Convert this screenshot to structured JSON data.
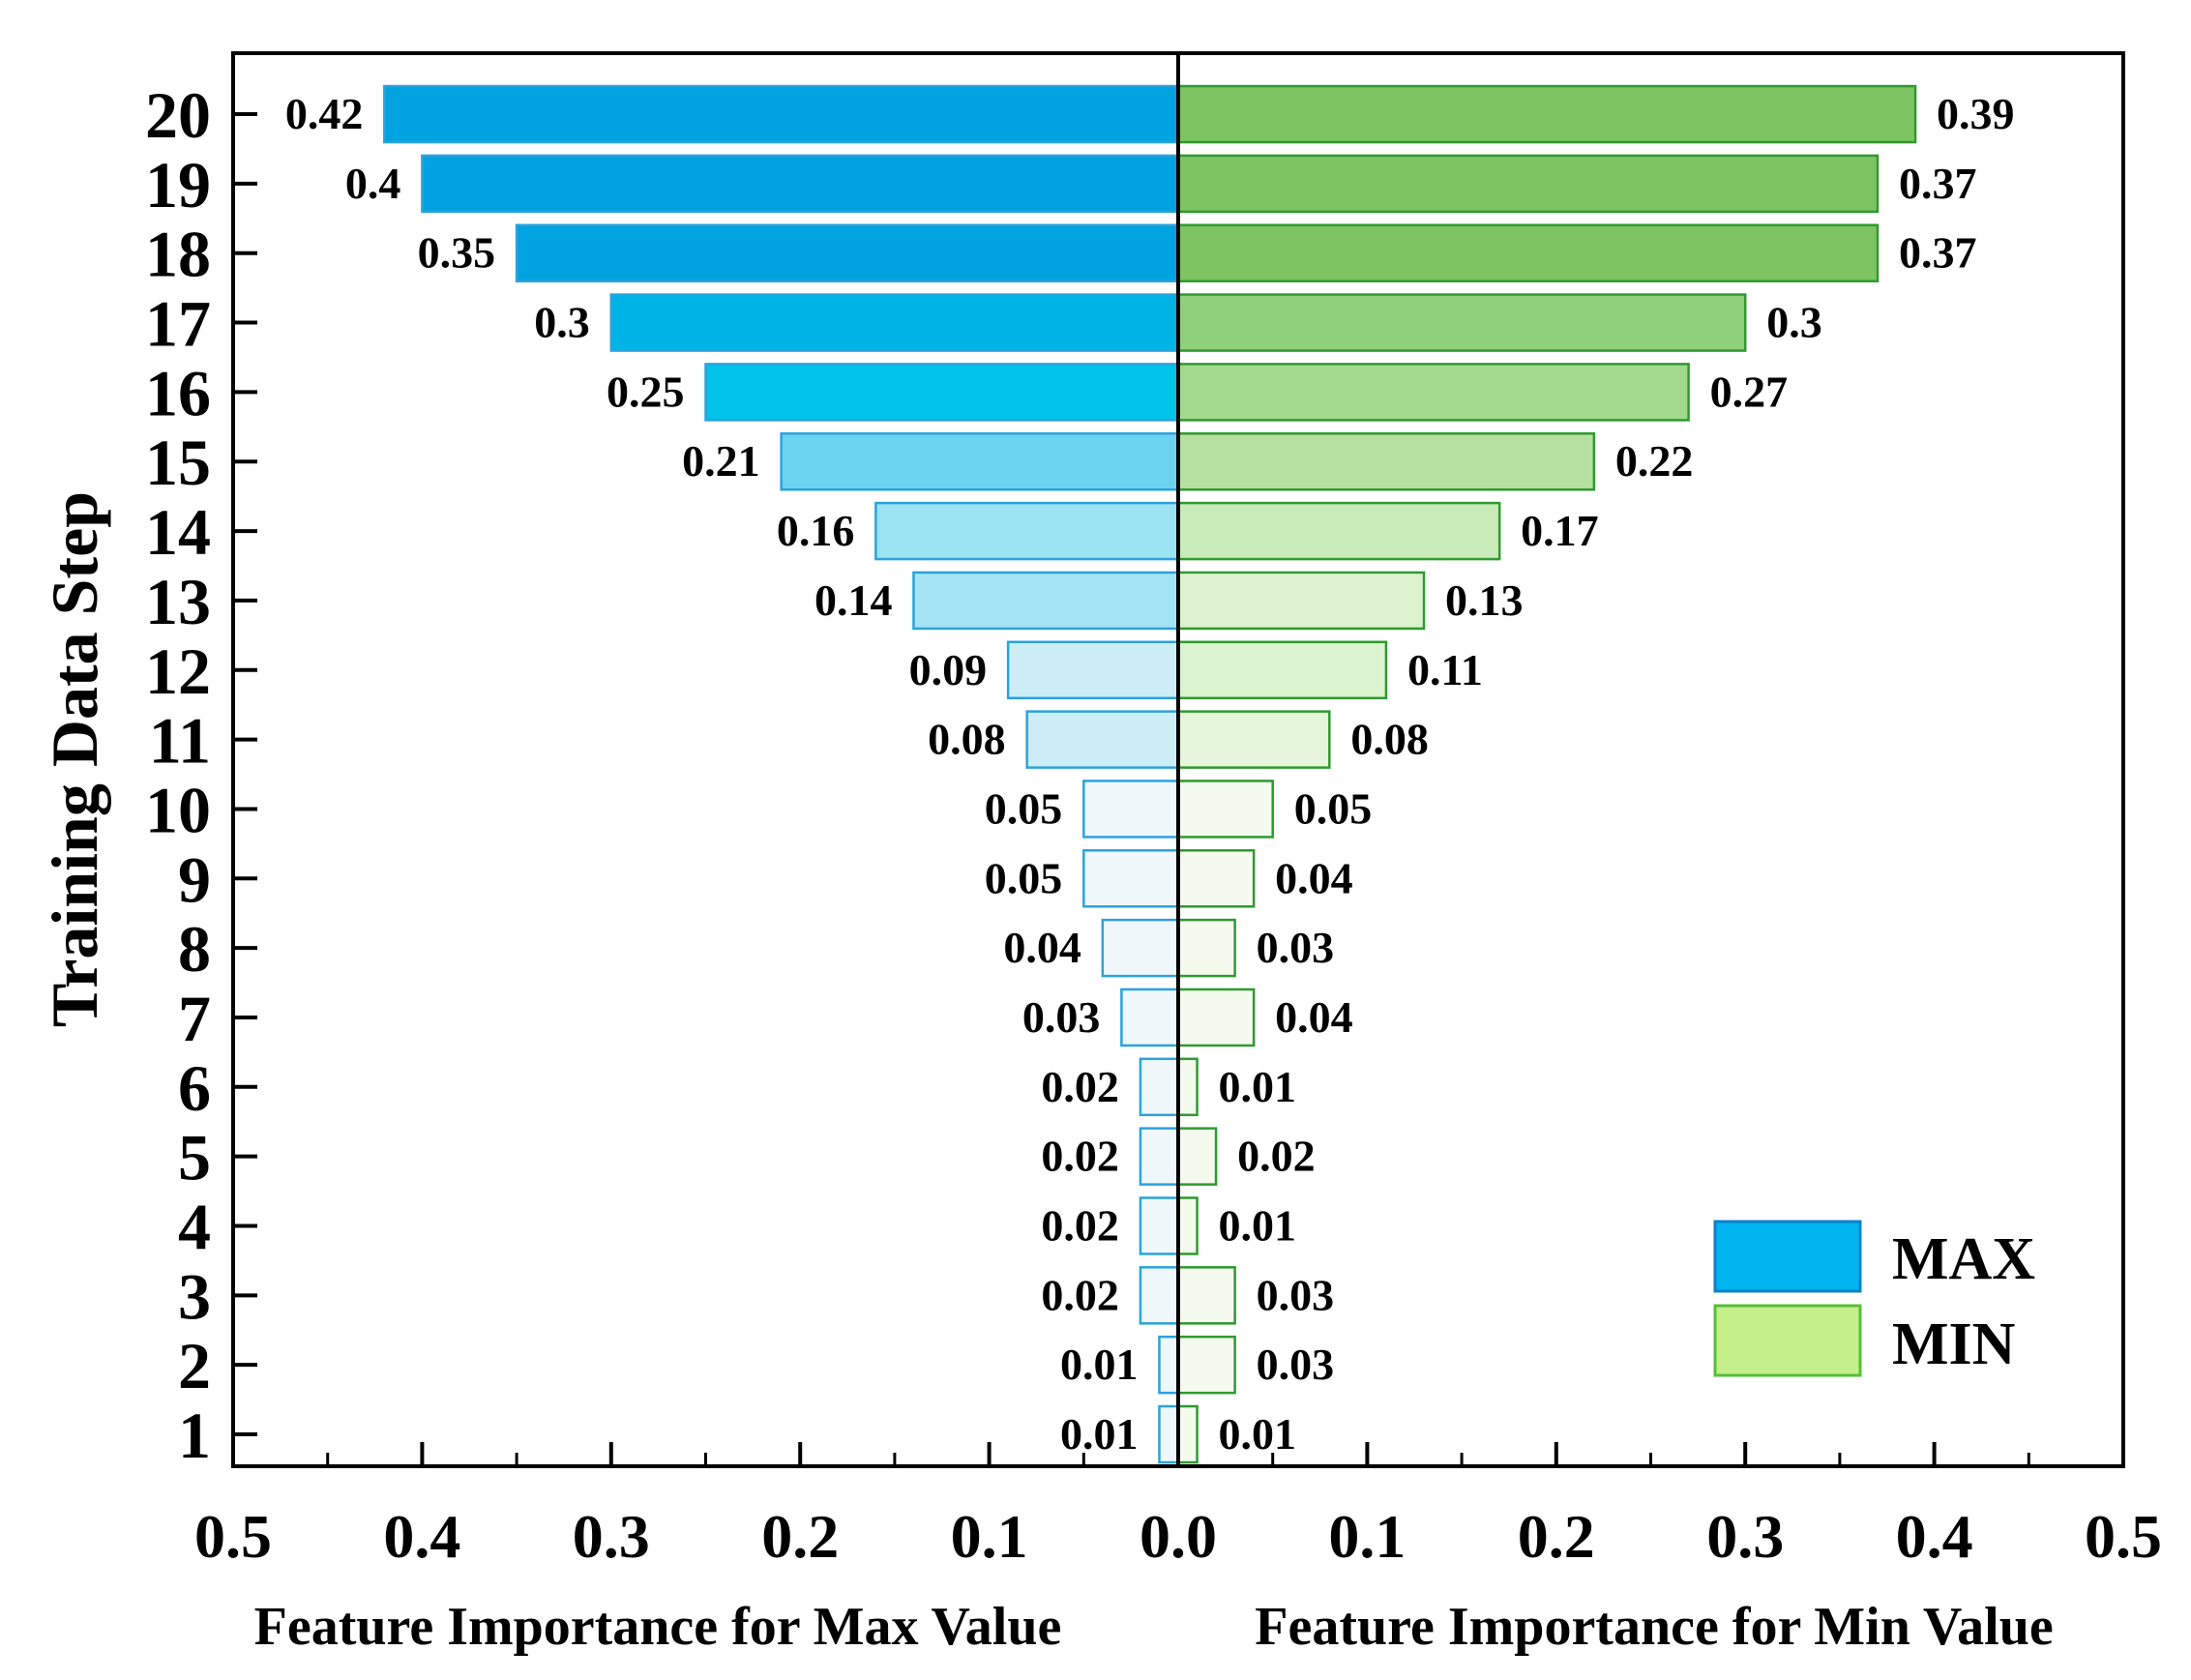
{
  "chart_data": {
    "type": "bar",
    "orientation": "horizontal-diverging",
    "ylabel": "Training Data Step",
    "xlabel_left": "Feature Importance for Max Value",
    "xlabel_right": "Feature Importance for Min Value",
    "xlim": [
      0,
      0.5
    ],
    "x_ticks": [
      "0.5",
      "0.4",
      "0.3",
      "0.2",
      "0.1",
      "0.0",
      "0.1",
      "0.2",
      "0.3",
      "0.4",
      "0.5"
    ],
    "categories": [
      "1",
      "2",
      "3",
      "4",
      "5",
      "6",
      "7",
      "8",
      "9",
      "10",
      "11",
      "12",
      "13",
      "14",
      "15",
      "16",
      "17",
      "18",
      "19",
      "20"
    ],
    "series": [
      {
        "name": "MAX",
        "side": "left",
        "values": [
          0.01,
          0.01,
          0.02,
          0.02,
          0.02,
          0.02,
          0.03,
          0.04,
          0.05,
          0.05,
          0.08,
          0.09,
          0.14,
          0.16,
          0.21,
          0.25,
          0.3,
          0.35,
          0.4,
          0.42
        ],
        "labels": [
          "0.01",
          "0.01",
          "0.02",
          "0.02",
          "0.02",
          "0.02",
          "0.03",
          "0.04",
          "0.05",
          "0.05",
          "0.08",
          "0.09",
          "0.14",
          "0.16",
          "0.21",
          "0.25",
          "0.3",
          "0.35",
          "0.4",
          "0.42"
        ],
        "colors": [
          "#eff7fa",
          "#eff7fa",
          "#eff7fa",
          "#eff7fa",
          "#eff7fa",
          "#eff7fa",
          "#eff7fa",
          "#eff7fa",
          "#eff7fa",
          "#eff7fa",
          "#cdeef7",
          "#cdeef7",
          "#a4e3f3",
          "#9be2f3",
          "#6bd3ef",
          "#00c3ea",
          "#00b3e6",
          "#00a2e0",
          "#00a2e0",
          "#00a2e0"
        ],
        "stroke": "#2ba3dc",
        "legend_color": "#00b4f0",
        "legend_stroke": "#0a82c8"
      },
      {
        "name": "MIN",
        "side": "right",
        "values": [
          0.01,
          0.03,
          0.03,
          0.01,
          0.02,
          0.01,
          0.04,
          0.03,
          0.04,
          0.05,
          0.08,
          0.11,
          0.13,
          0.17,
          0.22,
          0.27,
          0.3,
          0.37,
          0.37,
          0.39
        ],
        "labels": [
          "0.01",
          "0.03",
          "0.03",
          "0.01",
          "0.02",
          "0.01",
          "0.04",
          "0.03",
          "0.04",
          "0.05",
          "0.08",
          "0.11",
          "0.13",
          "0.17",
          "0.22",
          "0.27",
          "0.3",
          "0.37",
          "0.37",
          "0.39"
        ],
        "colors": [
          "#f4fbee",
          "#f4fbee",
          "#f4fbee",
          "#f4fbee",
          "#f4fbee",
          "#f4fbee",
          "#f4fbee",
          "#f4fbee",
          "#f4fbee",
          "#f4fbee",
          "#e6f6dc",
          "#dcf3d0",
          "#dcf2cf",
          "#c9eab9",
          "#b5e0a1",
          "#a3d98d",
          "#91d07b",
          "#7ec463",
          "#7ec463",
          "#7ec463"
        ],
        "stroke": "#2f9a2f",
        "legend_color": "#c5ef8a",
        "legend_stroke": "#55c03a"
      }
    ],
    "legend": [
      "MAX",
      "MIN"
    ],
    "legend_position": "bottom-right"
  }
}
